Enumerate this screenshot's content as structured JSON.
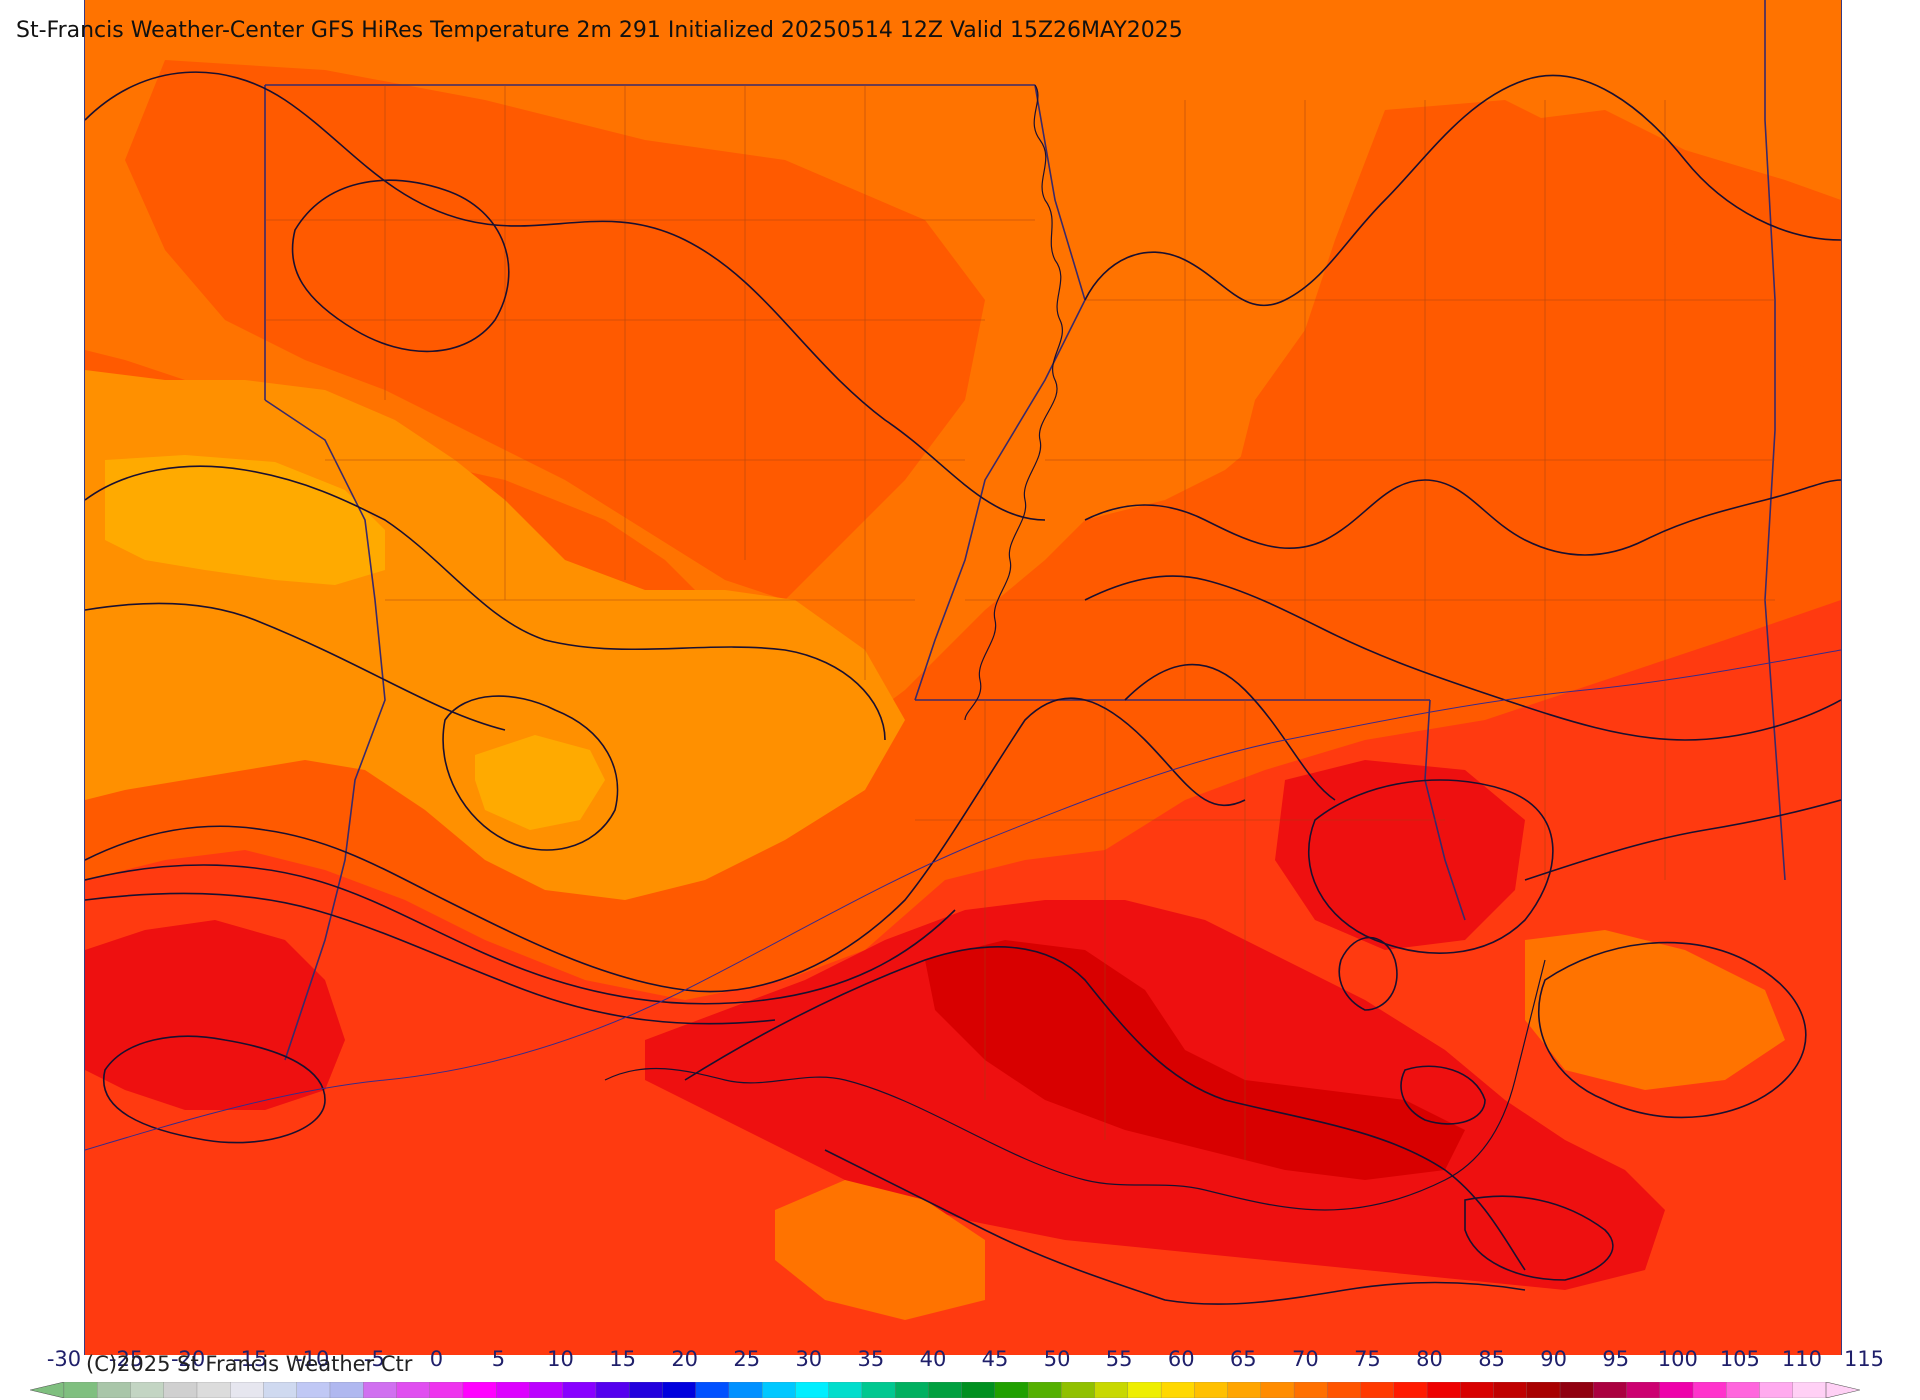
{
  "title": "St-Francis Weather-Center GFS HiRes Temperature 2m  291 Initialized 20250514 12Z Valid 15Z26MAY2025",
  "copyright": "(C)2025 St Francis Weather Ctr",
  "colorbar": {
    "labels": [
      "-30",
      "-25",
      "-20",
      "-15",
      "-10",
      "-5",
      "0",
      "5",
      "10",
      "15",
      "20",
      "25",
      "30",
      "35",
      "40",
      "45",
      "50",
      "55",
      "60",
      "65",
      "70",
      "75",
      "80",
      "85",
      "90",
      "95",
      "100",
      "105",
      "110",
      "115"
    ],
    "colors": [
      "#7fbf7f",
      "#a9c6a9",
      "#c3d5c3",
      "#d0d0d0",
      "#dcdcdc",
      "#e6e6ef",
      "#cfd9f0",
      "#c0c8f5",
      "#b0b8f0",
      "#d070f0",
      "#e04ef0",
      "#ee33ee",
      "#ff00ff",
      "#dd00ff",
      "#bb00ff",
      "#8800ff",
      "#5500ee",
      "#2200dd",
      "#0000dd",
      "#0050ff",
      "#0090ff",
      "#00c8ff",
      "#00eeff",
      "#00ddcc",
      "#00c890",
      "#00b060",
      "#00a040",
      "#009020",
      "#20a000",
      "#55b000",
      "#90c000",
      "#c8d800",
      "#eeee00",
      "#ffd800",
      "#ffc000",
      "#ffa500",
      "#ff8c00",
      "#ff7000",
      "#ff5500",
      "#ff3a00",
      "#ff1a00",
      "#ee0000",
      "#d80000",
      "#c00000",
      "#a80000",
      "#900010",
      "#aa0040",
      "#cc0070",
      "#ee00aa",
      "#ff33cc",
      "#ff66dd",
      "#ffaaee",
      "#ffd0f5"
    ]
  },
  "legend_colors": {
    "t70_75": "#ff9000",
    "t75_80": "#ff7000",
    "t80_85": "#ff5500",
    "t85_90": "#ff3a1a",
    "t90_95": "#f01010",
    "t95_100": "#e00000",
    "t65_70": "#ffaa00"
  }
}
